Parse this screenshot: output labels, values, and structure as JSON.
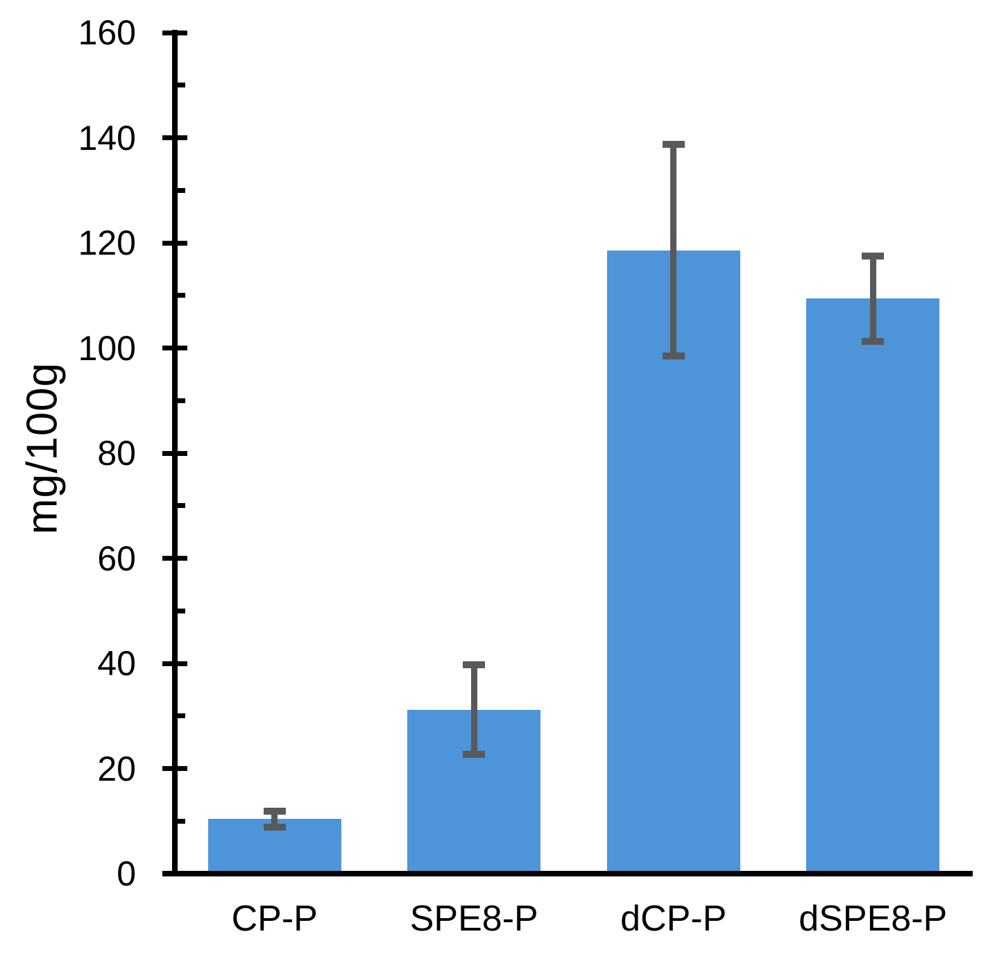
{
  "chart_data": {
    "type": "bar",
    "title": "",
    "categories": [
      "CP-P",
      "SPE8-P",
      "dCP-P",
      "dSPE8-P"
    ],
    "values": [
      10.4,
      31.2,
      118.6,
      109.4
    ],
    "error_bars": [
      1.5,
      8.5,
      20.1,
      8.1
    ],
    "xlabel": "",
    "ylabel": "mg/100g",
    "ylim": [
      0,
      160
    ],
    "y_major_step": 20,
    "y_minor_step": 10,
    "y_tick_labels": [
      "0",
      "20",
      "40",
      "60",
      "80",
      "100",
      "120",
      "140",
      "160"
    ],
    "grid": "off",
    "legend": "none",
    "colors": {
      "bar_fill": "#4E94D8",
      "error_bar": "#58595B",
      "axis": "#000000",
      "background": "#FFFFFF"
    }
  }
}
